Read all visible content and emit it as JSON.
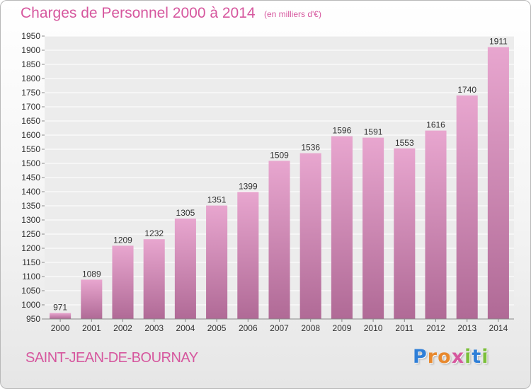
{
  "header": {
    "title": "Charges de Personnel 2000 à 2014",
    "subtitle": "(en milliers d'€)"
  },
  "footer": {
    "commune": "SAINT-JEAN-DE-BOURNAY",
    "logo_letters": [
      "P",
      "r",
      "o",
      "x",
      "i",
      "t",
      "i"
    ]
  },
  "colors": {
    "accent": "#d6579e",
    "bar_top": "#e8a6cf",
    "bar_bottom": "#b06a96",
    "grid": "#ffffff",
    "logo": [
      "#2f7fd8",
      "#e8892e",
      "#e8892e",
      "#d6579e",
      "#7bbf3a",
      "#2f7fd8",
      "#7bbf3a"
    ]
  },
  "chart_data": {
    "type": "bar",
    "categories": [
      "2000",
      "2001",
      "2002",
      "2003",
      "2004",
      "2005",
      "2006",
      "2007",
      "2008",
      "2009",
      "2010",
      "2011",
      "2012",
      "2013",
      "2014"
    ],
    "values": [
      971,
      1089,
      1209,
      1232,
      1305,
      1351,
      1399,
      1509,
      1536,
      1596,
      1591,
      1553,
      1616,
      1740,
      1911
    ],
    "title": "Charges de Personnel 2000 à 2014",
    "unit": "(en milliers d'€)",
    "ylim": [
      950,
      1950
    ],
    "yticks": [
      950,
      1000,
      1050,
      1100,
      1150,
      1200,
      1250,
      1300,
      1350,
      1400,
      1450,
      1500,
      1550,
      1600,
      1650,
      1700,
      1750,
      1800,
      1850,
      1900,
      1950
    ],
    "grid": true,
    "data_labels": true
  }
}
